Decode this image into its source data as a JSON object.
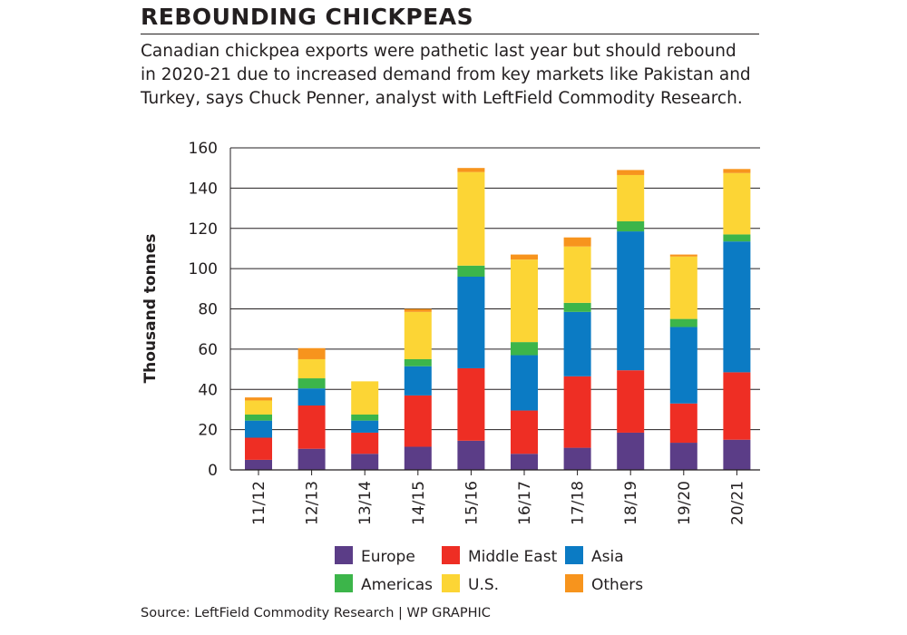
{
  "title": "REBOUNDING CHICKPEAS",
  "subtitle_lines": [
    "Canadian chickpea exports were pathetic last year but should rebound",
    "in 2020-21 due to increased demand from key markets like Pakistan and",
    "Turkey, says Chuck Penner, analyst with LeftField Commodity Research."
  ],
  "source": "Source: LeftField Commodity Research | WP GRAPHIC",
  "colors": {
    "Europe": "#5b3d87",
    "Middle East": "#ee2e24",
    "Asia": "#0b7bc4",
    "Americas": "#3cb54a",
    "U.S.": "#fcd535",
    "Others": "#f7941d"
  },
  "chart_data": {
    "type": "bar",
    "stacked": true,
    "title": "REBOUNDING CHICKPEAS",
    "xlabel": "",
    "ylabel": "Thousand tonnes",
    "ylim": [
      0,
      160
    ],
    "yticks": [
      0,
      20,
      40,
      60,
      80,
      100,
      120,
      140,
      160
    ],
    "grid": true,
    "legend_position": "bottom",
    "categories": [
      "11/12",
      "12/13",
      "13/14",
      "14/15",
      "15/16",
      "16/17",
      "17/18",
      "18/19",
      "19/20",
      "20/21"
    ],
    "series": [
      {
        "name": "Europe",
        "values": [
          5,
          10.5,
          8,
          11.5,
          14.5,
          8,
          11,
          18.5,
          13.5,
          15
        ]
      },
      {
        "name": "Middle East",
        "values": [
          11,
          21.5,
          10.5,
          25.5,
          36,
          21.5,
          35.5,
          31,
          19.5,
          33.5
        ]
      },
      {
        "name": "Asia",
        "values": [
          8.5,
          8.5,
          6,
          14.5,
          45.5,
          27.5,
          32,
          69,
          38,
          65
        ]
      },
      {
        "name": "Americas",
        "values": [
          3,
          5,
          3,
          3.5,
          5.5,
          6.5,
          4.5,
          5,
          4,
          3.5
        ]
      },
      {
        "name": "U.S.",
        "values": [
          7,
          9.5,
          16.5,
          23.5,
          46.5,
          41,
          28,
          23,
          31,
          30.5
        ]
      },
      {
        "name": "Others",
        "values": [
          1.5,
          5.5,
          0,
          1.5,
          2,
          2.5,
          4.5,
          2.5,
          1,
          2
        ]
      }
    ]
  }
}
